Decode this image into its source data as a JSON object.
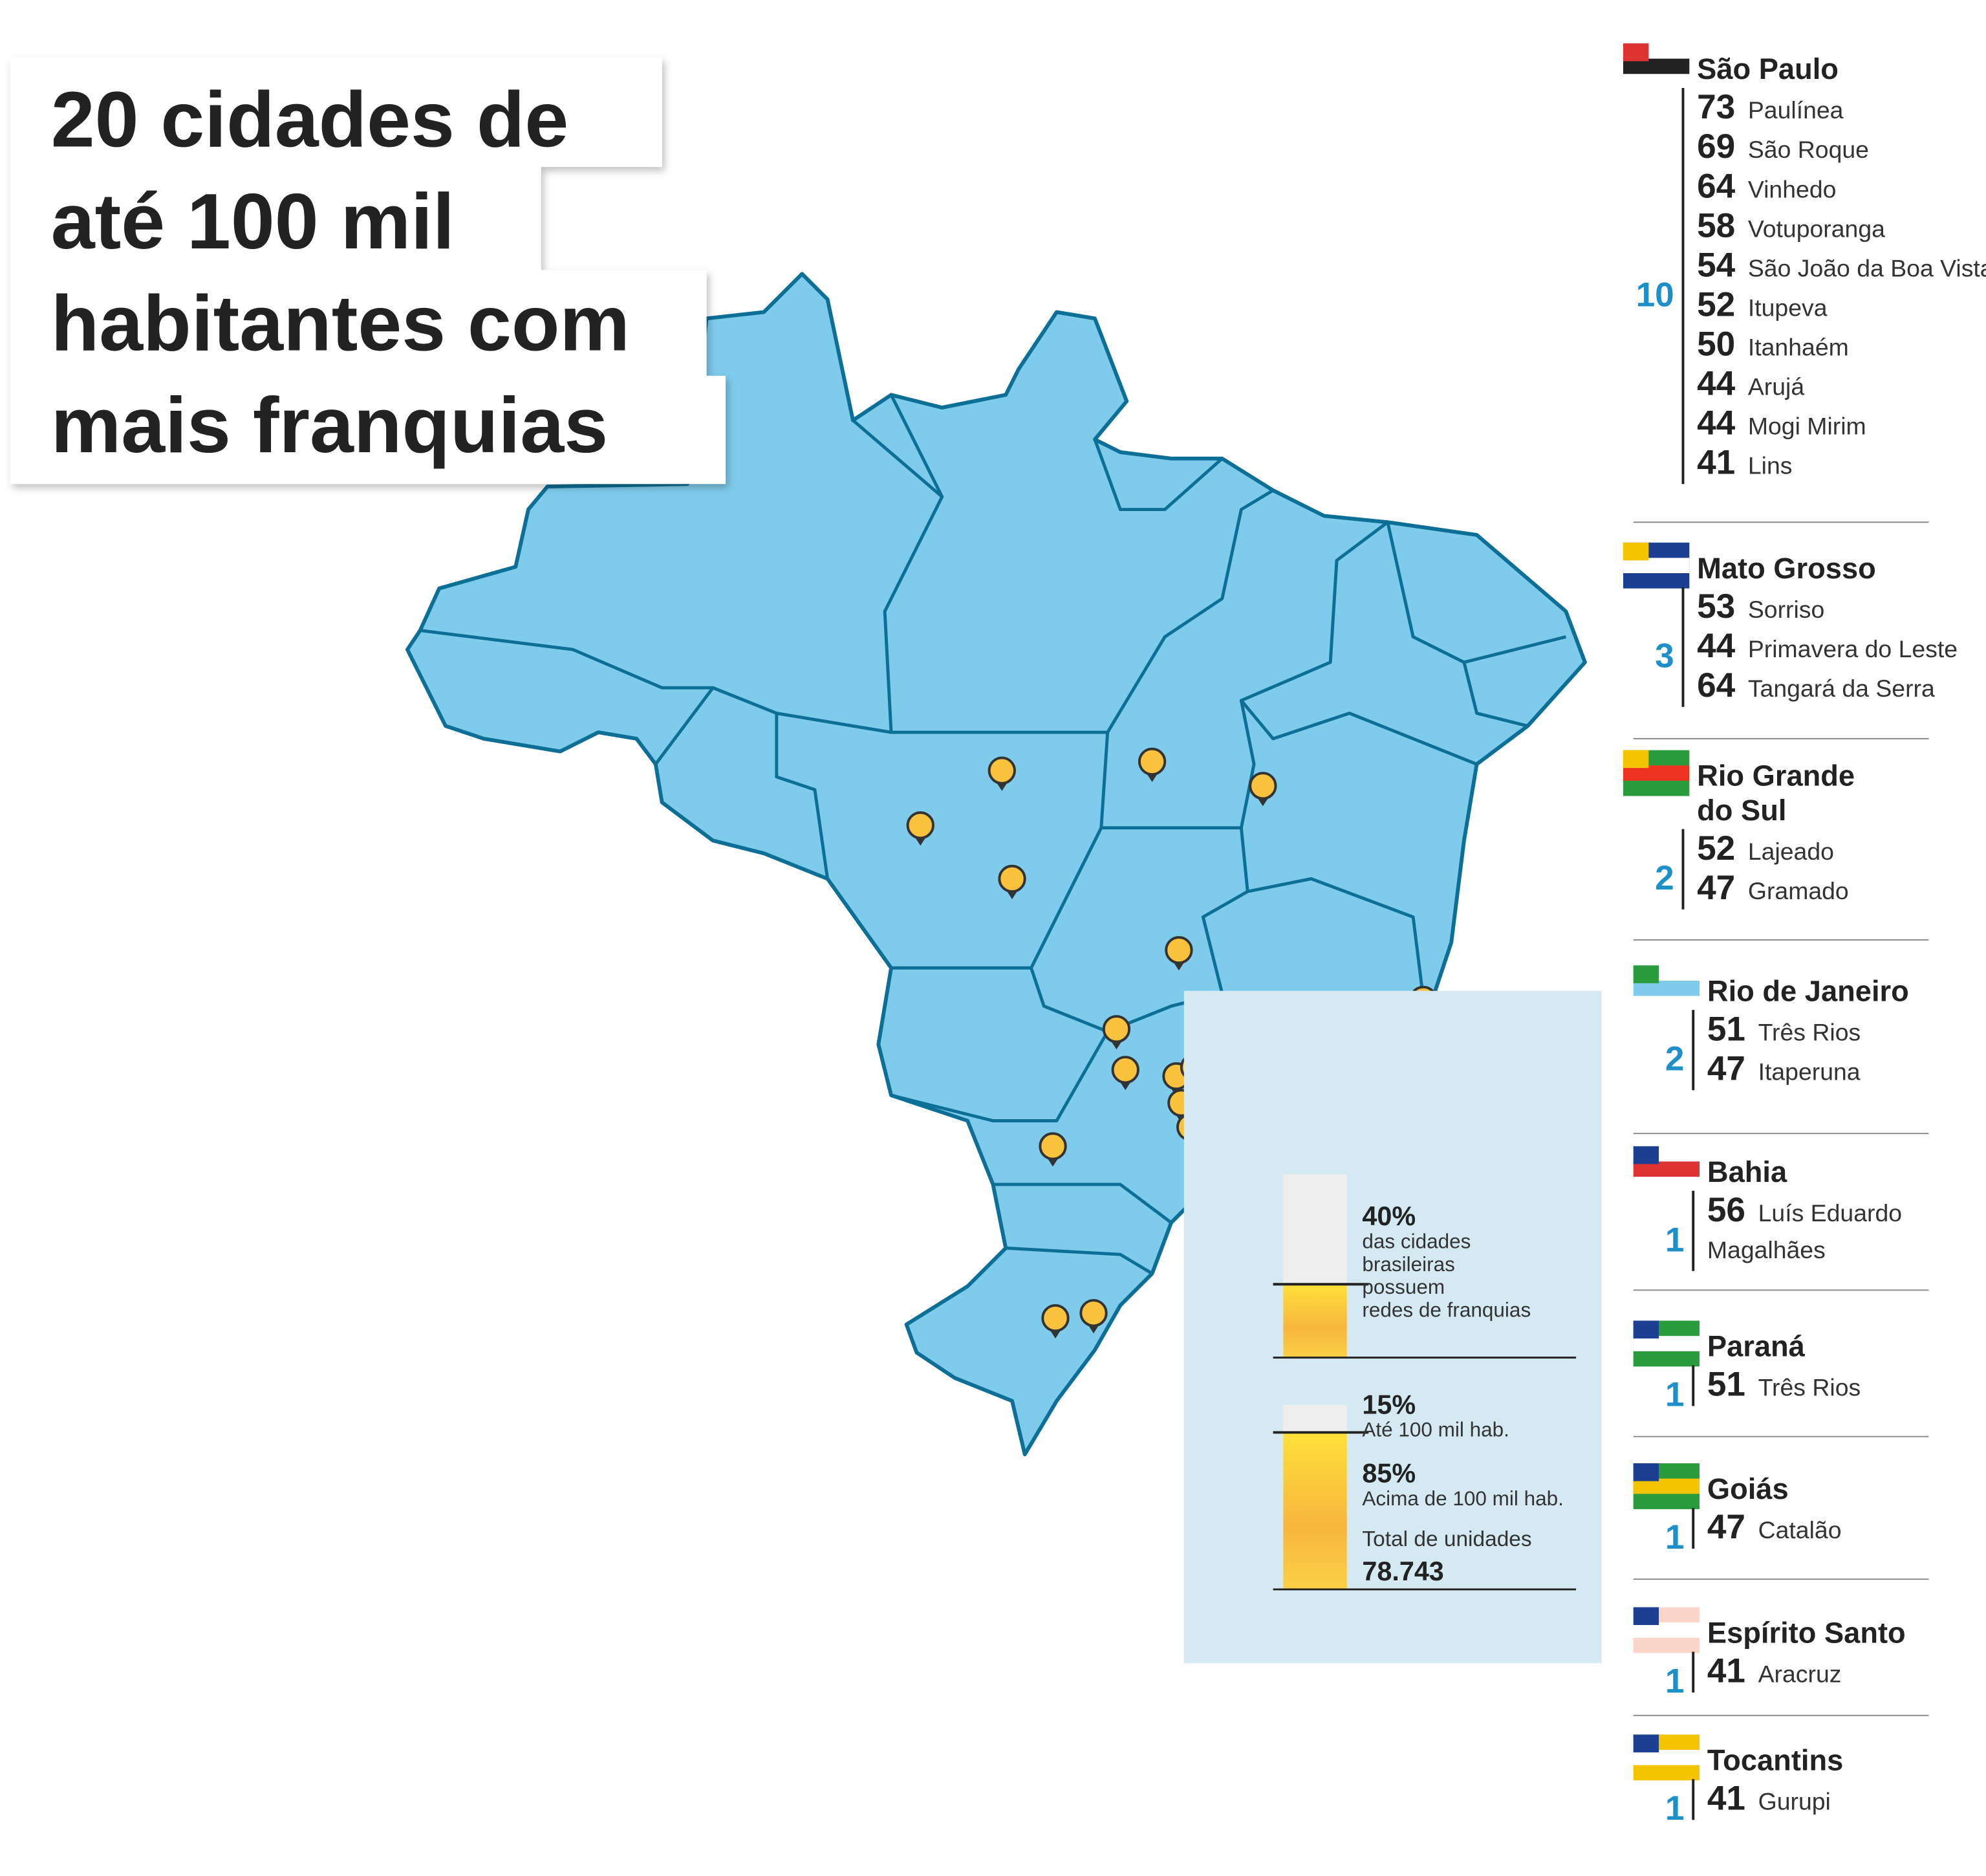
{
  "title_lines": [
    "20 cidades de",
    "até 100 mil",
    "habitantes com",
    "mais franquias"
  ],
  "states": [
    {
      "name": "São Paulo",
      "total": 10,
      "cities": [
        {
          "count": 73,
          "name": "Paulínea"
        },
        {
          "count": 69,
          "name": "São Roque"
        },
        {
          "count": 64,
          "name": "Vinhedo"
        },
        {
          "count": 58,
          "name": "Votuporanga"
        },
        {
          "count": 54,
          "name": "São João da Boa Vista"
        },
        {
          "count": 52,
          "name": "Itupeva"
        },
        {
          "count": 50,
          "name": "Itanhaém"
        },
        {
          "count": 44,
          "name": "Arujá"
        },
        {
          "count": 44,
          "name": "Mogi Mirim"
        },
        {
          "count": 41,
          "name": "Lins"
        }
      ]
    },
    {
      "name": "Mato Grosso",
      "total": 3,
      "cities": [
        {
          "count": 53,
          "name": "Sorriso"
        },
        {
          "count": 44,
          "name": "Primavera do Leste"
        },
        {
          "count": 64,
          "name": "Tangará da Serra"
        }
      ]
    },
    {
      "name": [
        "Rio Grande",
        "do Sul"
      ],
      "total": 2,
      "cities": [
        {
          "count": 52,
          "name": "Lajeado"
        },
        {
          "count": 47,
          "name": "Gramado"
        }
      ]
    },
    {
      "name": "Rio de Janeiro",
      "total": 2,
      "cities": [
        {
          "count": 51,
          "name": "Três Rios"
        },
        {
          "count": 47,
          "name": "Itaperuna"
        }
      ]
    },
    {
      "name": "Bahia",
      "total": 1,
      "cities": [
        {
          "count": 56,
          "name": [
            "Luís Eduardo",
            "Magalhães"
          ]
        }
      ]
    },
    {
      "name": "Paraná",
      "total": 1,
      "cities": [
        {
          "count": 51,
          "name": "Três Rios"
        }
      ]
    },
    {
      "name": "Goiás",
      "total": 1,
      "cities": [
        {
          "count": 47,
          "name": "Catalão"
        }
      ]
    },
    {
      "name": "Espírito Santo",
      "total": 1,
      "cities": [
        {
          "count": 41,
          "name": "Aracruz"
        }
      ]
    },
    {
      "name": "Tocantins",
      "total": 1,
      "cities": [
        {
          "count": 41,
          "name": "Gurupi"
        }
      ]
    }
  ],
  "stats": {
    "share": {
      "value": 40,
      "label": "40%"
    },
    "share_text": [
      "das cidades",
      "brasileiras",
      "possuem",
      "redes de franquias"
    ],
    "small": {
      "value": 15,
      "label": "15%"
    },
    "small_text": "Até 100 mil hab.",
    "large": {
      "value": 85,
      "label": "85%"
    },
    "large_text": "Acima de 100 mil hab.",
    "total_label": "Total de unidades",
    "total": "78.743"
  }
}
